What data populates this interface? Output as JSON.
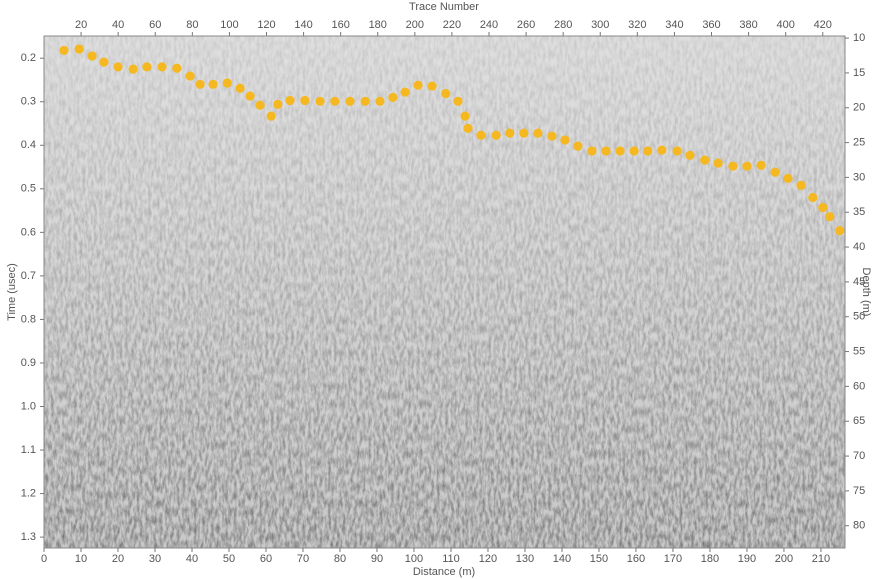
{
  "chart_data": {
    "type": "scatter",
    "x_label": "Distance (m)",
    "x2_label": "Trace Number",
    "y_label": "Time (usec)",
    "y2_label": "Depth (m)",
    "color": "#f5b820",
    "invert_y": true,
    "xlim": [
      0,
      216.5
    ],
    "xticks": [
      0,
      10,
      20,
      30,
      40,
      50,
      60,
      70,
      80,
      90,
      100,
      110,
      120,
      130,
      140,
      150,
      160,
      170,
      180,
      190,
      200,
      210
    ],
    "x2lim": [
      0,
      432
    ],
    "x2ticks": [
      20,
      40,
      60,
      80,
      100,
      120,
      140,
      160,
      180,
      200,
      220,
      240,
      260,
      280,
      300,
      320,
      340,
      360,
      380,
      400,
      420
    ],
    "ylim": [
      0.149,
      1.325
    ],
    "yticks": [
      0.2,
      0.3,
      0.4,
      0.5,
      0.6,
      0.7,
      0.8,
      0.9,
      {
        "value": 1,
        "label": "1.0"
      },
      1.1,
      1.2,
      1.3
    ],
    "y2lim": [
      9.7,
      83.2
    ],
    "y2ticks": [
      10,
      15,
      20,
      25,
      30,
      35,
      40,
      45,
      50,
      55,
      60,
      65,
      70,
      75,
      80
    ],
    "x": [
      5.4,
      9.5,
      13.0,
      16.2,
      20.0,
      24.1,
      27.8,
      31.9,
      35.9,
      39.5,
      42.2,
      45.7,
      49.5,
      53.0,
      55.7,
      58.4,
      61.4,
      63.2,
      66.5,
      70.5,
      74.6,
      78.6,
      82.7,
      86.8,
      90.8,
      94.3,
      97.6,
      101.1,
      104.9,
      108.6,
      111.9,
      113.8,
      114.6,
      118.1,
      122.2,
      125.9,
      129.7,
      133.5,
      137.3,
      140.8,
      144.3,
      148.1,
      151.9,
      155.7,
      159.5,
      163.2,
      167.0,
      171.1,
      174.6,
      178.6,
      182.2,
      186.2,
      190.0,
      193.8,
      197.6,
      201.1,
      204.6,
      207.8,
      210.5,
      212.4,
      215.1
    ],
    "values": [
      0.182,
      0.179,
      0.195,
      0.209,
      0.22,
      0.225,
      0.22,
      0.22,
      0.223,
      0.241,
      0.26,
      0.26,
      0.257,
      0.269,
      0.287,
      0.308,
      0.333,
      0.306,
      0.297,
      0.297,
      0.299,
      0.299,
      0.299,
      0.299,
      0.299,
      0.29,
      0.278,
      0.262,
      0.264,
      0.281,
      0.299,
      0.333,
      0.361,
      0.377,
      0.377,
      0.372,
      0.372,
      0.372,
      0.379,
      0.388,
      0.402,
      0.413,
      0.413,
      0.413,
      0.413,
      0.413,
      0.411,
      0.413,
      0.423,
      0.434,
      0.441,
      0.448,
      0.448,
      0.446,
      0.462,
      0.476,
      0.492,
      0.52,
      0.543,
      0.564,
      0.596
    ]
  }
}
